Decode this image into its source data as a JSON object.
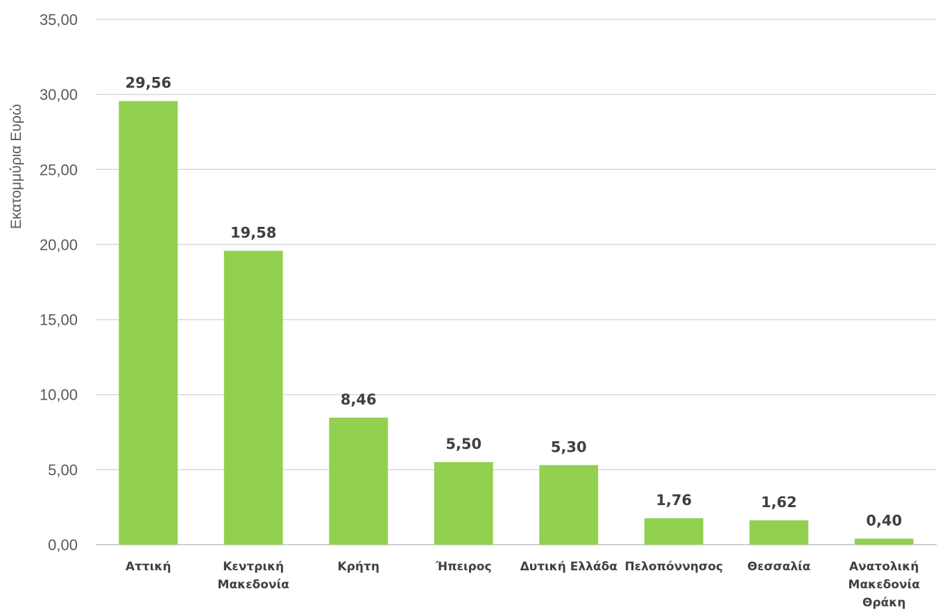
{
  "chart_data": {
    "type": "bar",
    "title": "",
    "xlabel": "",
    "ylabel": "Εκατομμύρια Ευρώ",
    "categories": [
      [
        "Αττική"
      ],
      [
        "Κεντρική",
        "Μακεδονία"
      ],
      [
        "Κρήτη"
      ],
      [
        "Ήπειρος"
      ],
      [
        "Δυτική Ελλάδα"
      ],
      [
        "Πελοπόννησος"
      ],
      [
        "Θεσσαλία"
      ],
      [
        "Ανατολική",
        "Μακεδονία",
        "Θράκη"
      ]
    ],
    "values": [
      29.56,
      19.58,
      8.46,
      5.5,
      5.3,
      1.76,
      1.62,
      0.4
    ],
    "value_labels": [
      "29,56",
      "19,58",
      "8,46",
      "5,50",
      "5,30",
      "1,76",
      "1,62",
      "0,40"
    ],
    "ylim": [
      0,
      35
    ],
    "yticks": [
      0,
      5,
      10,
      15,
      20,
      25,
      30,
      35
    ],
    "ytick_labels": [
      "0,00",
      "5,00",
      "10,00",
      "15,00",
      "20,00",
      "25,00",
      "30,00",
      "35,00"
    ],
    "grid": true,
    "legend": "none",
    "colors": {
      "bar": "#92d050",
      "grid": "#d9d9d9",
      "text": "#404040",
      "axis_text": "#595959"
    }
  }
}
